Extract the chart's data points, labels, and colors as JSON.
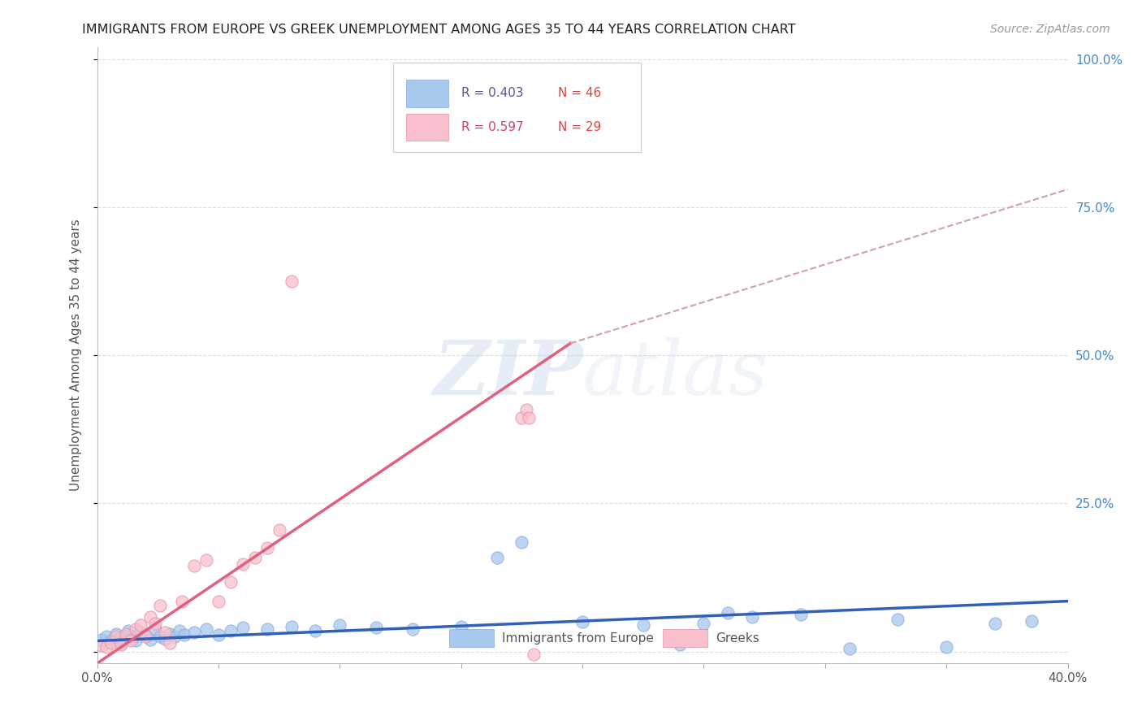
{
  "title": "IMMIGRANTS FROM EUROPE VS GREEK UNEMPLOYMENT AMONG AGES 35 TO 44 YEARS CORRELATION CHART",
  "source": "Source: ZipAtlas.com",
  "ylabel": "Unemployment Among Ages 35 to 44 years",
  "xlim": [
    0.0,
    0.4
  ],
  "ylim": [
    -0.02,
    1.02
  ],
  "xticks": [
    0.0,
    0.05,
    0.1,
    0.15,
    0.2,
    0.25,
    0.3,
    0.35,
    0.4
  ],
  "yticks": [
    0.0,
    0.25,
    0.5,
    0.75,
    1.0
  ],
  "xtick_labels": [
    "0.0%",
    "",
    "",
    "",
    "",
    "",
    "",
    "",
    "40.0%"
  ],
  "ytick_labels_right": [
    "",
    "25.0%",
    "50.0%",
    "75.0%",
    "100.0%"
  ],
  "blue_marker_color": "#A8C8EE",
  "blue_edge_color": "#88AADD",
  "pink_marker_color": "#F8C0CC",
  "pink_edge_color": "#E890A8",
  "blue_line_color": "#3060B8",
  "pink_line_color": "#E06080",
  "dashed_line_color": "#D0A0B0",
  "legend_R_blue": "R = 0.403",
  "legend_N_blue": "N = 46",
  "legend_R_pink": "R = 0.597",
  "legend_N_pink": "N = 29",
  "legend_label_blue": "Immigrants from Europe",
  "legend_label_pink": "Greeks",
  "blue_scatter_x": [
    0.002,
    0.004,
    0.006,
    0.008,
    0.009,
    0.01,
    0.012,
    0.013,
    0.015,
    0.016,
    0.018,
    0.02,
    0.022,
    0.024,
    0.026,
    0.028,
    0.03,
    0.032,
    0.034,
    0.036,
    0.04,
    0.045,
    0.05,
    0.055,
    0.06,
    0.07,
    0.08,
    0.09,
    0.1,
    0.115,
    0.13,
    0.15,
    0.175,
    0.2,
    0.225,
    0.25,
    0.27,
    0.29,
    0.31,
    0.33,
    0.35,
    0.37,
    0.385,
    0.24,
    0.26,
    0.165
  ],
  "blue_scatter_y": [
    0.02,
    0.025,
    0.018,
    0.03,
    0.022,
    0.015,
    0.028,
    0.035,
    0.025,
    0.018,
    0.032,
    0.028,
    0.02,
    0.038,
    0.025,
    0.022,
    0.03,
    0.025,
    0.035,
    0.028,
    0.032,
    0.038,
    0.028,
    0.035,
    0.04,
    0.038,
    0.042,
    0.035,
    0.045,
    0.04,
    0.038,
    0.042,
    0.185,
    0.05,
    0.045,
    0.048,
    0.058,
    0.062,
    0.005,
    0.055,
    0.008,
    0.048,
    0.052,
    0.012,
    0.065,
    0.158
  ],
  "pink_scatter_x": [
    0.002,
    0.004,
    0.006,
    0.008,
    0.01,
    0.012,
    0.014,
    0.016,
    0.018,
    0.02,
    0.022,
    0.024,
    0.026,
    0.028,
    0.03,
    0.035,
    0.04,
    0.045,
    0.05,
    0.055,
    0.06,
    0.065,
    0.07,
    0.075,
    0.08,
    0.175,
    0.177,
    0.178,
    0.18
  ],
  "pink_scatter_y": [
    0.01,
    0.008,
    0.015,
    0.025,
    0.012,
    0.03,
    0.018,
    0.038,
    0.045,
    0.025,
    0.058,
    0.048,
    0.078,
    0.032,
    0.015,
    0.085,
    0.145,
    0.155,
    0.085,
    0.118,
    0.148,
    0.158,
    0.175,
    0.205,
    0.625,
    0.395,
    0.408,
    0.395,
    -0.005
  ],
  "blue_trendline_x": [
    0.0,
    0.4
  ],
  "blue_trendline_y": [
    0.018,
    0.085
  ],
  "pink_trendline_x": [
    0.0,
    0.195
  ],
  "pink_trendline_y": [
    -0.02,
    0.52
  ],
  "dashed_trendline_x": [
    0.195,
    0.4
  ],
  "dashed_trendline_y": [
    0.52,
    0.78
  ],
  "watermark_text": "ZIPatlas",
  "bg_color": "#FFFFFF",
  "grid_color": "#DDDDDD",
  "title_fontsize": 11.5,
  "axis_label_fontsize": 11,
  "tick_fontsize": 11,
  "legend_fontsize": 11,
  "source_fontsize": 10
}
